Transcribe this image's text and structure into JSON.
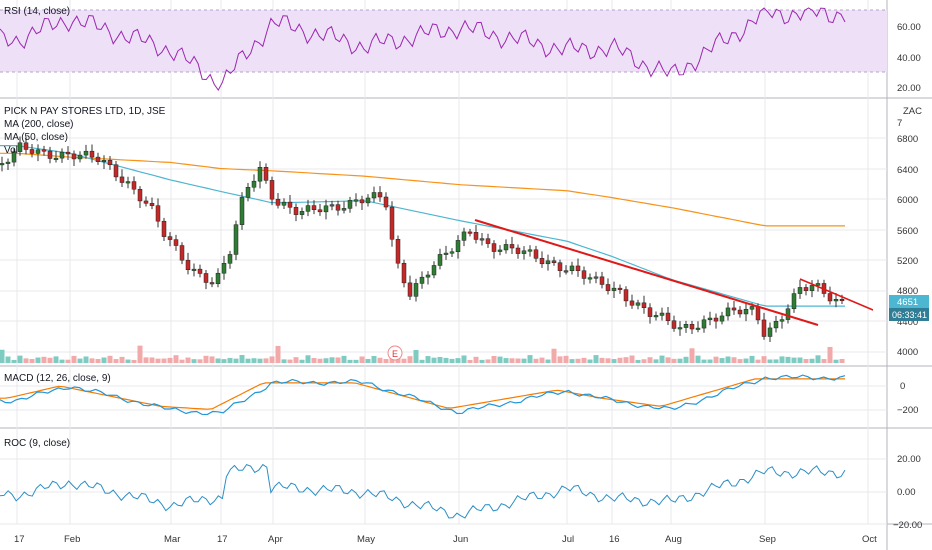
{
  "colors": {
    "up": "#2e7d32",
    "down": "#c62828",
    "rsi": "#9c27b0",
    "rsi_band": "#ede0f7",
    "ma200": "#f7931a",
    "ma50": "#4db6d0",
    "macd": "#2196d8",
    "signal": "#f57c00",
    "roc": "#2a8fc5",
    "trend": "#e01818",
    "vol_up": "#7ecbc2",
    "vol_down": "#f2a9a9",
    "badge": "#4db6d0"
  },
  "rsi": {
    "title": "RSI (14, close)",
    "ticks": [
      "60.00",
      "40.00",
      "20.00"
    ]
  },
  "main": {
    "title": "PICK N PAY STORES LTD, 1D, JSE",
    "ma200": "MA (200, close)",
    "ma50": "MA (50, close)",
    "vol": "Vol",
    "currency": "ZAC",
    "last_price": "4651",
    "countdown": "06:33:41",
    "price_tag": "4800",
    "ticks": [
      "7",
      "6800",
      "6400",
      "6000",
      "5600",
      "5200",
      "4800",
      "4400",
      "4000"
    ],
    "earnings": "E"
  },
  "macd": {
    "title": "MACD (12, 26, close, 9)",
    "ticks": [
      "0",
      "−200"
    ]
  },
  "roc": {
    "title": "ROC (9, close)",
    "ticks": [
      "20.00",
      "0.00",
      "−20.00"
    ]
  },
  "xaxis": {
    "labels": [
      "17",
      "Feb",
      "Mar",
      "17",
      "Apr",
      "May",
      "Jun",
      "Jul",
      "16",
      "Aug",
      "Sep",
      "Oct"
    ]
  },
  "chart_data": [
    {
      "type": "line",
      "title": "RSI (14, close)",
      "ylim": [
        15,
        72
      ],
      "x": [
        "Jan 17",
        "Feb",
        "Mar",
        "Mar 17",
        "Apr",
        "May",
        "Jun",
        "Jul",
        "Jul 16",
        "Aug",
        "Sep"
      ],
      "series": [
        {
          "values": [
            48,
            60,
            42,
            22,
            58,
            44,
            55,
            42,
            43,
            27,
            63
          ]
        }
      ]
    },
    {
      "type": "candlestick",
      "title": "PICK N PAY STORES LTD, 1D, JSE",
      "ylim": [
        3900,
        7000
      ],
      "x": [
        "Jan 17",
        "Feb",
        "Mar",
        "Mar 17",
        "Apr",
        "May",
        "Jun",
        "Jul",
        "Jul 16",
        "Aug",
        "Sep"
      ],
      "series": [
        {
          "name": "MA (200, close)",
          "values": [
            6600,
            6550,
            6480,
            6400,
            6370,
            6300,
            6190,
            6110,
            6020,
            5890,
            5650
          ]
        },
        {
          "name": "MA (50, close)",
          "values": [
            6700,
            6600,
            6250,
            6100,
            5950,
            5980,
            5720,
            5450,
            5250,
            4950,
            4600
          ]
        }
      ],
      "last": 4651
    },
    {
      "type": "line",
      "title": "MACD (12, 26, close, 9)",
      "ylim": [
        -300,
        120
      ],
      "x": [
        "Jan 17",
        "Feb",
        "Mar",
        "Mar 17",
        "Apr",
        "May",
        "Jun",
        "Jul",
        "Jul 16",
        "Aug",
        "Sep"
      ],
      "series": [
        {
          "values": [
            -120,
            0,
            -200,
            -230,
            30,
            30,
            -220,
            -40,
            -120,
            -200,
            70
          ]
        }
      ]
    },
    {
      "type": "line",
      "title": "ROC (9, close)",
      "ylim": [
        -25,
        32
      ],
      "x": [
        "Jan 17",
        "Feb",
        "Mar",
        "Mar 17",
        "Apr",
        "May",
        "Jun",
        "Jul",
        "Jul 16",
        "Aug",
        "Sep"
      ],
      "series": [
        {
          "values": [
            -2,
            6,
            -8,
            -3,
            3,
            0,
            -14,
            2,
            -4,
            -6,
            12
          ]
        }
      ]
    }
  ]
}
